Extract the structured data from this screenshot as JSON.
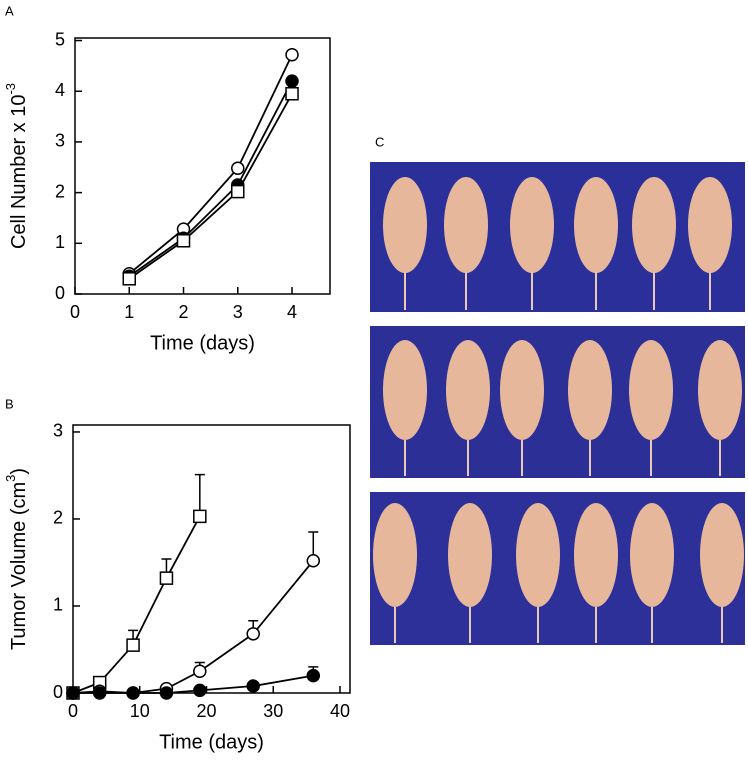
{
  "chart_data": [
    {
      "type": "line",
      "panel": "A",
      "xlabel": "Time (days)",
      "ylabel": "Cell Number x 10",
      "ylabel_superscript": "-3",
      "xlim": [
        0,
        4.7
      ],
      "xticks": [
        0,
        1,
        2,
        3,
        4
      ],
      "ylim": [
        0,
        5.05
      ],
      "yticks": [
        0,
        1,
        2,
        3,
        4,
        5
      ],
      "series": [
        {
          "marker": "circle",
          "color": "#000000",
          "fill": "#ffffff",
          "x": [
            1,
            2,
            3,
            4
          ],
          "values": [
            0.4,
            1.28,
            2.48,
            4.72
          ]
        },
        {
          "marker": "circle",
          "color": "#000000",
          "fill": "#000000",
          "x": [
            1,
            2,
            3,
            4
          ],
          "values": [
            0.35,
            1.1,
            2.15,
            4.2
          ]
        },
        {
          "marker": "square",
          "color": "#000000",
          "fill": "#ffffff",
          "x": [
            1,
            2,
            3,
            4
          ],
          "values": [
            0.3,
            1.05,
            2.02,
            3.95
          ]
        }
      ]
    },
    {
      "type": "line",
      "panel": "B",
      "xlabel": "Time (days)",
      "ylabel": "Tumor Volume (cm",
      "ylabel_superscript": "3",
      "ylabel_suffix": ")",
      "xlim": [
        0,
        41.5
      ],
      "xticks": [
        0,
        10,
        20,
        30,
        40
      ],
      "ylim": [
        0,
        3.08
      ],
      "yticks": [
        0,
        1,
        2,
        3
      ],
      "series": [
        {
          "marker": "square",
          "color": "#000000",
          "fill": "#ffffff",
          "x": [
            0,
            4,
            9,
            14,
            19
          ],
          "values": [
            0,
            0.12,
            0.55,
            1.32,
            2.03
          ],
          "errors": [
            0,
            0,
            0.17,
            0.22,
            0.48
          ]
        },
        {
          "marker": "circle",
          "color": "#000000",
          "fill": "#ffffff",
          "x": [
            0,
            4,
            9,
            14,
            19,
            27,
            36
          ],
          "values": [
            0,
            0.02,
            0,
            0.05,
            0.25,
            0.68,
            1.52
          ],
          "errors": [
            0,
            0,
            0,
            0,
            0.1,
            0.15,
            0.33
          ]
        },
        {
          "marker": "circle",
          "color": "#000000",
          "fill": "#000000",
          "x": [
            0,
            4,
            9,
            14,
            19,
            27,
            36
          ],
          "values": [
            0,
            0,
            0,
            0,
            0.03,
            0.08,
            0.2
          ],
          "errors": [
            0,
            0,
            0,
            0,
            0,
            0,
            0.1
          ]
        }
      ]
    }
  ],
  "photo_panel": {
    "label": "C"
  }
}
